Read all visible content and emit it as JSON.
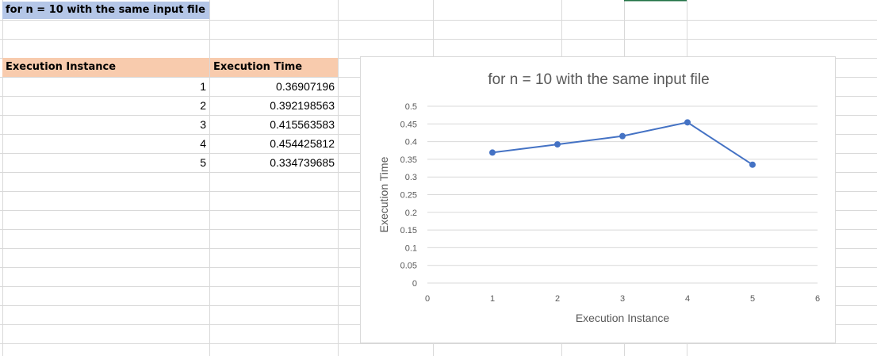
{
  "sheet": {
    "title_cell": "for n = 10 with the same input file",
    "headers": {
      "instance": "Execution Instance",
      "time": "Execution Time"
    },
    "rows": [
      {
        "instance": "1",
        "time": "0.36907196"
      },
      {
        "instance": "2",
        "time": "0.392198563"
      },
      {
        "instance": "3",
        "time": "0.415563583"
      },
      {
        "instance": "4",
        "time": "0.454425812"
      },
      {
        "instance": "5",
        "time": "0.334739685"
      }
    ],
    "colors": {
      "title_fill": "#b4c6e7",
      "header_fill": "#f8cbad",
      "gridline": "#d9d9d9"
    }
  },
  "chart_data": {
    "type": "scatter",
    "title": "for n = 10 with the same input file",
    "xlabel": "Execution Instance",
    "ylabel": "Execution Time",
    "xlim": [
      0,
      6
    ],
    "ylim": [
      0,
      0.5
    ],
    "x_ticks": [
      "0",
      "1",
      "2",
      "3",
      "4",
      "5",
      "6"
    ],
    "y_ticks": [
      "0",
      "0.05",
      "0.1",
      "0.15",
      "0.2",
      "0.25",
      "0.3",
      "0.35",
      "0.4",
      "0.45",
      "0.5"
    ],
    "grid": true,
    "legend": false,
    "series": [
      {
        "x": [
          1,
          2,
          3,
          4,
          5
        ],
        "y": [
          0.36907196,
          0.392198563,
          0.415563583,
          0.454425812,
          0.334739685
        ],
        "color": "#4472c4",
        "style": "line-with-markers"
      }
    ]
  }
}
